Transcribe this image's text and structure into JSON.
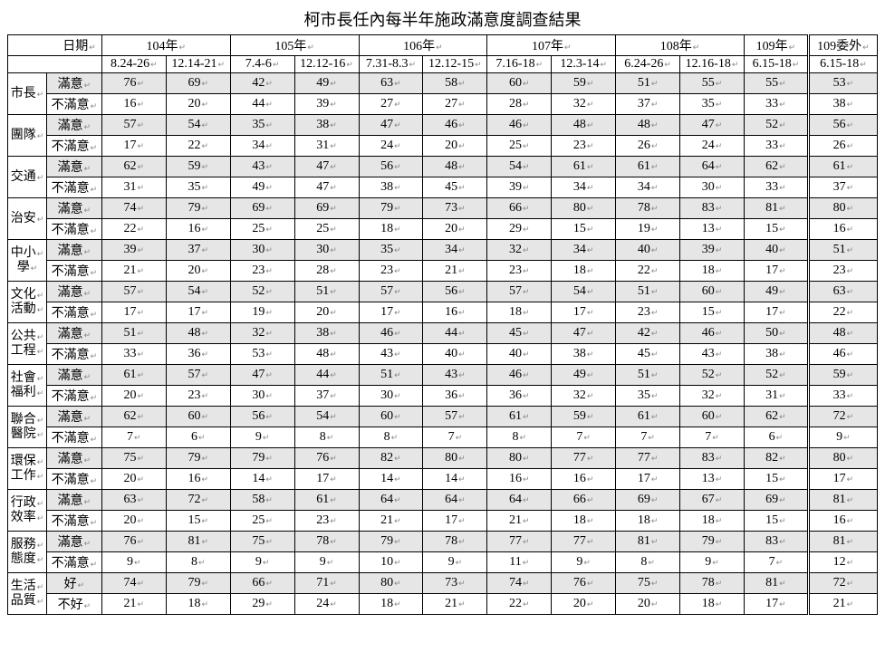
{
  "title": "柯市長任內每半年施政滿意度調查結果",
  "header": {
    "dateLabel": "日期",
    "years": [
      "104年",
      "105年",
      "106年",
      "107年",
      "108年",
      "109年",
      "109委外"
    ],
    "periods": [
      "8.24-26",
      "12.14-21",
      "7.4-6",
      "12.12-16",
      "7.31-8.3",
      "12.12-15",
      "7.16-18",
      "12.3-14",
      "6.24-26",
      "12.16-18",
      "6.15-18",
      "6.15-18"
    ]
  },
  "labels": {
    "sat": "滿意",
    "unsat": "不滿意",
    "good": "好",
    "bad": "不好"
  },
  "categories": [
    {
      "name": "市長",
      "satKey": "sat",
      "unsatKey": "unsat",
      "sat": [
        76,
        69,
        42,
        49,
        63,
        58,
        60,
        59,
        51,
        55,
        55,
        53
      ],
      "unsat": [
        16,
        20,
        44,
        39,
        27,
        27,
        28,
        32,
        37,
        35,
        33,
        38
      ]
    },
    {
      "name": "團隊",
      "satKey": "sat",
      "unsatKey": "unsat",
      "sat": [
        57,
        54,
        35,
        38,
        47,
        46,
        46,
        48,
        48,
        47,
        52,
        56
      ],
      "unsat": [
        17,
        22,
        34,
        31,
        24,
        20,
        25,
        23,
        26,
        24,
        33,
        26
      ]
    },
    {
      "name": "交通",
      "satKey": "sat",
      "unsatKey": "unsat",
      "sat": [
        62,
        59,
        43,
        47,
        56,
        48,
        54,
        61,
        61,
        64,
        62,
        61
      ],
      "unsat": [
        31,
        35,
        49,
        47,
        38,
        45,
        39,
        34,
        34,
        30,
        33,
        37
      ]
    },
    {
      "name": "治安",
      "satKey": "sat",
      "unsatKey": "unsat",
      "sat": [
        74,
        79,
        69,
        69,
        79,
        73,
        66,
        80,
        78,
        83,
        81,
        80
      ],
      "unsat": [
        22,
        16,
        25,
        25,
        18,
        20,
        29,
        15,
        19,
        13,
        15,
        16
      ]
    },
    {
      "name": "中小\n學",
      "satKey": "sat",
      "unsatKey": "unsat",
      "sat": [
        39,
        37,
        30,
        30,
        35,
        34,
        32,
        34,
        40,
        39,
        40,
        51
      ],
      "unsat": [
        21,
        20,
        23,
        28,
        23,
        21,
        23,
        18,
        22,
        18,
        17,
        23
      ]
    },
    {
      "name": "文化\n活動",
      "satKey": "sat",
      "unsatKey": "unsat",
      "sat": [
        57,
        54,
        52,
        51,
        57,
        56,
        57,
        54,
        51,
        60,
        49,
        63
      ],
      "unsat": [
        17,
        17,
        19,
        20,
        17,
        16,
        18,
        17,
        23,
        15,
        17,
        22
      ]
    },
    {
      "name": "公共\n工程",
      "satKey": "sat",
      "unsatKey": "unsat",
      "sat": [
        51,
        48,
        32,
        38,
        46,
        44,
        45,
        47,
        42,
        46,
        50,
        48
      ],
      "unsat": [
        33,
        36,
        53,
        48,
        43,
        40,
        40,
        38,
        45,
        43,
        38,
        46
      ]
    },
    {
      "name": "社會\n福利",
      "satKey": "sat",
      "unsatKey": "unsat",
      "sat": [
        61,
        57,
        47,
        44,
        51,
        43,
        46,
        49,
        51,
        52,
        52,
        59
      ],
      "unsat": [
        20,
        23,
        30,
        37,
        30,
        36,
        36,
        32,
        35,
        32,
        31,
        33
      ]
    },
    {
      "name": "聯合\n醫院",
      "satKey": "sat",
      "unsatKey": "unsat",
      "sat": [
        62,
        60,
        56,
        54,
        60,
        57,
        61,
        59,
        61,
        60,
        62,
        72
      ],
      "unsat": [
        7,
        6,
        9,
        8,
        8,
        7,
        8,
        7,
        7,
        7,
        6,
        9
      ]
    },
    {
      "name": "環保\n工作",
      "satKey": "sat",
      "unsatKey": "unsat",
      "sat": [
        75,
        79,
        79,
        76,
        82,
        80,
        80,
        77,
        77,
        83,
        82,
        80
      ],
      "unsat": [
        20,
        16,
        14,
        17,
        14,
        14,
        16,
        16,
        17,
        13,
        15,
        17
      ]
    },
    {
      "name": "行政\n效率",
      "satKey": "sat",
      "unsatKey": "unsat",
      "sat": [
        63,
        72,
        58,
        61,
        64,
        64,
        64,
        66,
        69,
        67,
        69,
        81
      ],
      "unsat": [
        20,
        15,
        25,
        23,
        21,
        17,
        21,
        18,
        18,
        18,
        15,
        16
      ]
    },
    {
      "name": "服務\n態度",
      "satKey": "sat",
      "unsatKey": "unsat",
      "sat": [
        76,
        81,
        75,
        78,
        79,
        78,
        77,
        77,
        81,
        79,
        83,
        81
      ],
      "unsat": [
        9,
        8,
        9,
        9,
        10,
        9,
        11,
        9,
        8,
        9,
        7,
        12
      ]
    },
    {
      "name": "生活\n品質",
      "satKey": "good",
      "unsatKey": "bad",
      "sat": [
        74,
        79,
        66,
        71,
        80,
        73,
        74,
        76,
        75,
        78,
        81,
        72
      ],
      "unsat": [
        21,
        18,
        29,
        24,
        18,
        21,
        22,
        20,
        20,
        18,
        17,
        21
      ]
    }
  ],
  "style": {
    "background": "#ffffff",
    "shade": "#e6e6e6",
    "border": "#000000",
    "title_fontsize": 18,
    "body_fontsize": 14,
    "colWidths": {
      "cat1": 34,
      "cat2": 48,
      "data": 56
    }
  }
}
